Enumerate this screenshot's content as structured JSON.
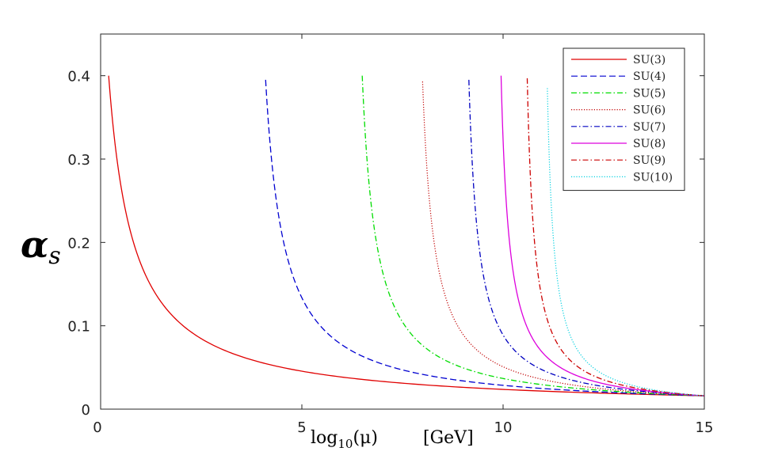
{
  "chart_data": {
    "type": "line",
    "title": "",
    "xlabel": "log10(μ)    [GeV]",
    "xlabel_parts": {
      "prefix": "log",
      "sub": "10",
      "arg": "(μ)",
      "unit": "[GeV]"
    },
    "ylabel": "αs",
    "ylabel_parts": {
      "main": "α",
      "sub": "s"
    },
    "xlim": [
      0,
      15
    ],
    "ylim": [
      0,
      0.45
    ],
    "xticks": [
      0,
      5,
      10,
      15
    ],
    "xtick_labels": [
      "0",
      "5",
      "10",
      "15"
    ],
    "yticks": [
      0,
      0.1,
      0.2,
      0.3,
      0.4
    ],
    "ytick_labels": [
      "0",
      "0.1",
      "0.2",
      "0.3",
      "0.4"
    ],
    "grid": false,
    "legend_position": "top-right",
    "endpoint": {
      "x": 15,
      "y": 0.016
    },
    "series": [
      {
        "name": "SU(3)",
        "color": "#e00000",
        "style": "solid",
        "x_start": 0.2,
        "y_start": 0.4
      },
      {
        "name": "SU(4)",
        "color": "#0000d0",
        "style": "dashed",
        "x_start": 4.1,
        "y_start": 0.395
      },
      {
        "name": "SU(5)",
        "color": "#00dd00",
        "style": "dashdot",
        "x_start": 6.5,
        "y_start": 0.4
      },
      {
        "name": "SU(6)",
        "color": "#c00000",
        "style": "dotted",
        "x_start": 8.0,
        "y_start": 0.393
      },
      {
        "name": "SU(7)",
        "color": "#0000c0",
        "style": "dashdot",
        "x_start": 9.15,
        "y_start": 0.395
      },
      {
        "name": "SU(8)",
        "color": "#dd00dd",
        "style": "solid",
        "x_start": 9.95,
        "y_start": 0.4
      },
      {
        "name": "SU(9)",
        "color": "#cc0000",
        "style": "dashdot",
        "x_start": 10.6,
        "y_start": 0.397
      },
      {
        "name": "SU(10)",
        "color": "#00d0e0",
        "style": "dotted",
        "x_start": 11.1,
        "y_start": 0.385
      }
    ]
  }
}
